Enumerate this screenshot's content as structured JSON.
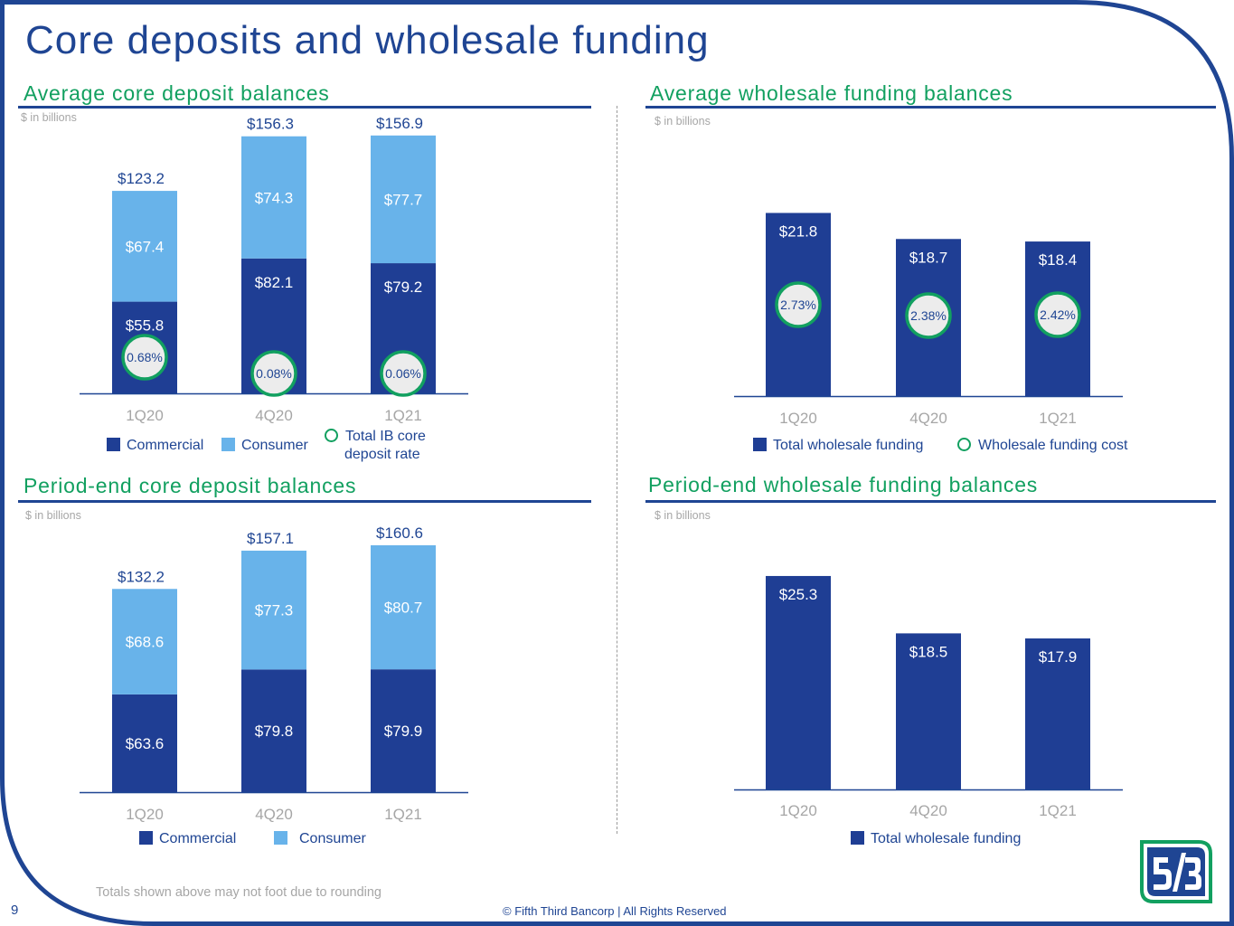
{
  "slide": {
    "title": "Core deposits and wholesale funding",
    "page_number": "9",
    "footnote": "Totals shown above may not foot due to rounding",
    "copyright": "© Fifth Third Bancorp | All Rights Reserved"
  },
  "colors": {
    "commercial": "#1f3e94",
    "consumer": "#68b3ea",
    "wholesale": "#1f3e94",
    "rate_ring": "#12a060",
    "rate_fill": "#ececec",
    "title_blue": "#1f4593",
    "section_green": "#12a060"
  },
  "sections": {
    "avg_core": {
      "title": "Average core deposit balances",
      "unit": "$ in billions"
    },
    "avg_wholesale": {
      "title": "Average wholesale funding balances",
      "unit": "$ in billions"
    },
    "pe_core": {
      "title": "Period-end core deposit balances",
      "unit": "$ in billions"
    },
    "pe_wholesale": {
      "title": "Period-end wholesale funding balances",
      "unit": "$ in billions"
    }
  },
  "legends": {
    "avg_core": {
      "commercial": "Commercial",
      "consumer": "Consumer",
      "rate_line1": "Total IB core",
      "rate_line2": "deposit rate"
    },
    "avg_wholesale": {
      "total": "Total wholesale funding",
      "cost": "Wholesale funding cost"
    },
    "pe_core": {
      "commercial": "Commercial",
      "consumer": "Consumer"
    },
    "pe_wholesale": {
      "total": "Total wholesale funding"
    }
  },
  "chart_data": [
    {
      "id": "avg_core",
      "type": "bar",
      "stacked": true,
      "title": "Average core deposit balances",
      "categories": [
        "1Q20",
        "4Q20",
        "1Q21"
      ],
      "series": [
        {
          "name": "Commercial",
          "values": [
            55.8,
            82.1,
            79.2
          ],
          "labels": [
            "$55.8",
            "$82.1",
            "$79.2"
          ]
        },
        {
          "name": "Consumer",
          "values": [
            67.4,
            74.3,
            77.7
          ],
          "labels": [
            "$67.4",
            "$74.3",
            "$77.7"
          ]
        }
      ],
      "totals": [
        123.2,
        156.3,
        156.9
      ],
      "total_labels": [
        "$123.2",
        "$156.3",
        "$156.9"
      ],
      "rates": {
        "name": "Total IB core deposit rate",
        "values": [
          0.68,
          0.08,
          0.06
        ],
        "labels": [
          "0.68%",
          "0.08%",
          "0.06%"
        ]
      },
      "ylim": [
        0,
        160
      ]
    },
    {
      "id": "avg_wholesale",
      "type": "bar",
      "title": "Average wholesale funding balances",
      "categories": [
        "1Q20",
        "4Q20",
        "1Q21"
      ],
      "series": [
        {
          "name": "Total wholesale funding",
          "values": [
            21.8,
            18.7,
            18.4
          ],
          "labels": [
            "$21.8",
            "$18.7",
            "$18.4"
          ]
        }
      ],
      "rates": {
        "name": "Wholesale funding cost",
        "values": [
          2.73,
          2.38,
          2.42
        ],
        "labels": [
          "2.73%",
          "2.38%",
          "2.42%"
        ]
      },
      "ylim": [
        0,
        30
      ]
    },
    {
      "id": "pe_core",
      "type": "bar",
      "stacked": true,
      "title": "Period-end core deposit balances",
      "categories": [
        "1Q20",
        "4Q20",
        "1Q21"
      ],
      "series": [
        {
          "name": "Commercial",
          "values": [
            63.6,
            79.8,
            79.9
          ],
          "labels": [
            "$63.6",
            "$79.8",
            "$79.9"
          ]
        },
        {
          "name": "Consumer",
          "values": [
            68.6,
            77.3,
            80.7
          ],
          "labels": [
            "$68.6",
            "$77.3",
            "$80.7"
          ]
        }
      ],
      "totals": [
        132.2,
        157.1,
        160.6
      ],
      "total_labels": [
        "$132.2",
        "$157.1",
        "$160.6"
      ],
      "ylim": [
        0,
        165
      ]
    },
    {
      "id": "pe_wholesale",
      "type": "bar",
      "title": "Period-end wholesale funding balances",
      "categories": [
        "1Q20",
        "4Q20",
        "1Q21"
      ],
      "series": [
        {
          "name": "Total wholesale funding",
          "values": [
            25.3,
            18.5,
            17.9
          ],
          "labels": [
            "$25.3",
            "$18.5",
            "$17.9"
          ]
        }
      ],
      "ylim": [
        0,
        30
      ]
    }
  ]
}
